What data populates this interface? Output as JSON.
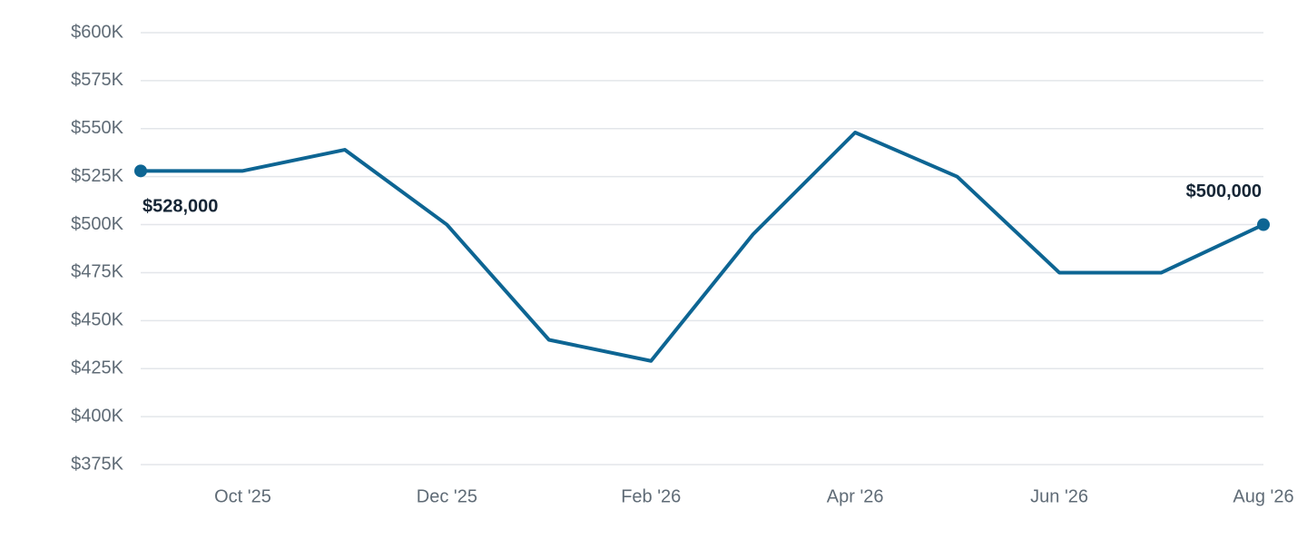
{
  "chart_data": {
    "type": "line",
    "categories": [
      null,
      "Oct '25",
      null,
      "Dec '25",
      null,
      "Feb '26",
      null,
      "Apr '26",
      null,
      "Jun '26",
      null,
      "Aug '26"
    ],
    "series": [
      {
        "color": "#0d6593",
        "values": [
          528000,
          528000,
          539000,
          500000,
          440000,
          429000,
          495000,
          548000,
          525000,
          475000,
          475000,
          500000
        ],
        "value_labels": [
          "$528,000",
          null,
          null,
          null,
          null,
          null,
          null,
          null,
          null,
          null,
          null,
          "$500,000"
        ]
      }
    ],
    "ylim": [
      375000,
      600000
    ],
    "yticks": [
      {
        "value": 375000,
        "label": "$375K"
      },
      {
        "value": 400000,
        "label": "$400K"
      },
      {
        "value": 425000,
        "label": "$425K"
      },
      {
        "value": 450000,
        "label": "$450K"
      },
      {
        "value": 475000,
        "label": "$475K"
      },
      {
        "value": 500000,
        "label": "$500K"
      },
      {
        "value": 525000,
        "label": "$525K"
      },
      {
        "value": 550000,
        "label": "$550K"
      },
      {
        "value": 575000,
        "label": "$575K"
      },
      {
        "value": 600000,
        "label": "$600K"
      }
    ],
    "grid": true
  }
}
